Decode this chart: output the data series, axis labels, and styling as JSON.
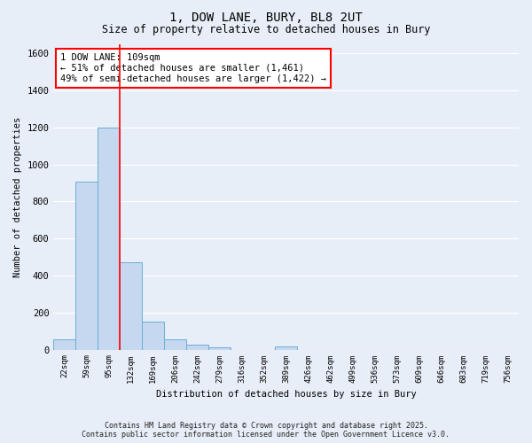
{
  "title_line1": "1, DOW LANE, BURY, BL8 2UT",
  "title_line2": "Size of property relative to detached houses in Bury",
  "xlabel": "Distribution of detached houses by size in Bury",
  "ylabel": "Number of detached properties",
  "bin_labels": [
    "22sqm",
    "59sqm",
    "95sqm",
    "132sqm",
    "169sqm",
    "206sqm",
    "242sqm",
    "279sqm",
    "316sqm",
    "352sqm",
    "389sqm",
    "426sqm",
    "462sqm",
    "499sqm",
    "536sqm",
    "573sqm",
    "609sqm",
    "646sqm",
    "683sqm",
    "719sqm",
    "756sqm"
  ],
  "bar_values": [
    55,
    910,
    1200,
    470,
    150,
    55,
    28,
    12,
    0,
    0,
    15,
    0,
    0,
    0,
    0,
    0,
    0,
    0,
    0,
    0,
    0
  ],
  "bar_color": "#c5d8f0",
  "bar_edge_color": "#6aaed6",
  "vline_x": 2.5,
  "vline_color": "red",
  "annotation_text": "1 DOW LANE: 109sqm\n← 51% of detached houses are smaller (1,461)\n49% of semi-detached houses are larger (1,422) →",
  "annotation_box_color": "white",
  "annotation_box_edge": "red",
  "ylim": [
    0,
    1650
  ],
  "yticks": [
    0,
    200,
    400,
    600,
    800,
    1000,
    1200,
    1400,
    1600
  ],
  "background_color": "#e8eef8",
  "grid_color": "white",
  "footer_line1": "Contains HM Land Registry data © Crown copyright and database right 2025.",
  "footer_line2": "Contains public sector information licensed under the Open Government Licence v3.0."
}
